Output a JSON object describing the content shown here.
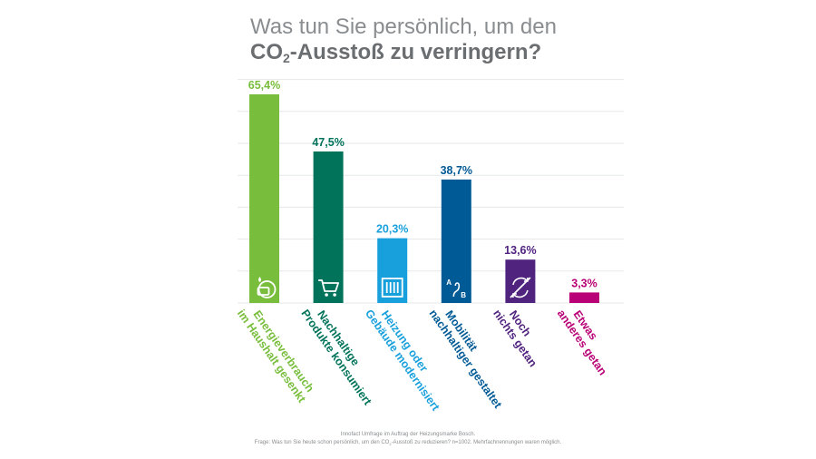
{
  "title": {
    "line1": "Was tun Sie persönlich, um den",
    "line2_prefix": "CO",
    "line2_sub": "2",
    "line2_suffix": "-Ausstoß zu verringern?"
  },
  "chart_data": {
    "type": "bar",
    "categories": [
      [
        "Energieverbrauch",
        "im Haushalt gesenkt"
      ],
      [
        "Nachhaltige",
        "Produkte konsumiert"
      ],
      [
        "Heizung oder",
        "Gebäude modernisiert"
      ],
      [
        "Mobilität",
        "nachhaltiger gestaltet"
      ],
      [
        "Noch",
        "nichts getan"
      ],
      [
        "Etwas",
        "anderes getan"
      ]
    ],
    "values": [
      65.4,
      47.5,
      20.3,
      38.7,
      13.6,
      3.3
    ],
    "value_labels": [
      "65,4%",
      "47,5%",
      "20,3%",
      "38,7%",
      "13,6%",
      "3,3%"
    ],
    "colors": [
      "#78be3c",
      "#00735a",
      "#18a0dc",
      "#005a96",
      "#50237f",
      "#b90276"
    ],
    "icons": [
      "energy-icon",
      "shopping-cart-icon",
      "radiator-icon",
      "route-ab-icon",
      "no-action-icon",
      null
    ],
    "ylim": [
      0,
      70
    ],
    "grid": true
  },
  "footnote": {
    "line1": "Innofact Umfrage im Auftrag der Heizungsmarke Bosch.",
    "line2_prefix": "Frage: Was tun Sie heute schon persönlich, um den CO",
    "line2_sub": "2",
    "line2_suffix": "-Ausstoß zu reduzieren? n=1002. Mehrfachnennungen waren möglich."
  }
}
